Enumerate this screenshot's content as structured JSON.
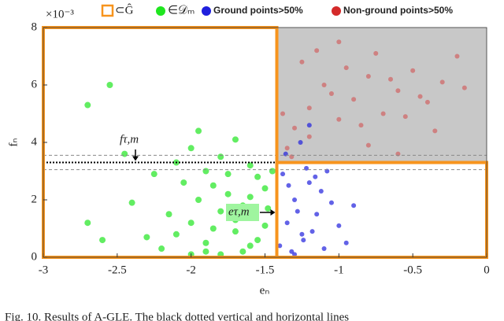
{
  "chart_data": {
    "type": "scatter",
    "multiplier": "×10⁻³",
    "xlabel": "eₙ",
    "ylabel": "fₙ",
    "xlim": [
      -3,
      0
    ],
    "xticks": [
      -3,
      -2.5,
      -2,
      -1.5,
      -1,
      -0.5,
      0
    ],
    "ylim": [
      0,
      8
    ],
    "yticks": [
      0,
      2,
      4,
      6,
      8
    ],
    "region_legend": {
      "name": "⊂Ĝ",
      "color": "#f7941d"
    },
    "region_color": "#c8c8c8",
    "thresholds": {
      "e_tau": -1.42,
      "f_tau": 3.3,
      "f_band": [
        3.05,
        3.55
      ]
    },
    "annotations": {
      "f_tau": "fτ,m",
      "e_tau": "eτ,m"
    },
    "series": [
      {
        "name": "∈𝒟ₘ",
        "color": "#1fe61f",
        "x": [
          -2.2,
          -2.1,
          -2.0,
          -1.9,
          -1.8,
          -1.7,
          -1.6,
          -1.5,
          -1.95,
          -1.85,
          -1.75,
          -1.65,
          -1.55,
          -2.05,
          -2.15,
          -2.3,
          -1.9,
          -1.8,
          -1.7,
          -1.6,
          -2.0,
          -1.75,
          -1.85,
          -1.65,
          -2.4,
          -2.6,
          -1.5,
          -1.95,
          -2.1,
          -1.7,
          -1.8,
          -1.9,
          -2.0,
          -1.6,
          -1.55,
          -2.25,
          -2.45,
          -2.7,
          -1.45,
          -1.48,
          -2.55,
          -2.7
        ],
        "values": [
          0.3,
          0.8,
          1.2,
          0.5,
          1.6,
          0.9,
          0.4,
          1.1,
          2.0,
          2.5,
          2.2,
          1.8,
          2.8,
          2.6,
          1.5,
          0.7,
          3.0,
          3.5,
          4.1,
          3.2,
          3.8,
          2.9,
          1.0,
          0.2,
          1.9,
          0.6,
          2.4,
          4.4,
          3.3,
          1.3,
          0.1,
          0.2,
          0.1,
          2.1,
          0.6,
          2.9,
          3.6,
          1.2,
          3.0,
          1.7,
          6.0,
          5.3
        ]
      },
      {
        "name": "Ground points>50%",
        "color": "#1f1fdd",
        "x": [
          -1.4,
          -1.35,
          -1.3,
          -1.25,
          -1.2,
          -1.15,
          -1.1,
          -1.05,
          -1.38,
          -1.32,
          -1.28,
          -1.22,
          -1.18,
          -1.12,
          -1.0,
          -0.95,
          -1.36,
          -1.26,
          -1.16,
          -1.3,
          -1.24,
          -1.34,
          -1.08,
          -0.9,
          -1.2
        ],
        "values": [
          0.4,
          1.2,
          2.0,
          0.8,
          2.6,
          1.5,
          0.3,
          1.9,
          2.9,
          0.2,
          1.6,
          3.1,
          0.9,
          2.3,
          1.1,
          0.5,
          3.6,
          4.0,
          2.8,
          0.1,
          0.6,
          2.5,
          3.0,
          1.8,
          4.6
        ]
      },
      {
        "name": "Non-ground points>50%",
        "color": "#d42a2a",
        "x": [
          -1.35,
          -1.3,
          -1.2,
          -1.1,
          -1.0,
          -0.9,
          -0.8,
          -0.7,
          -0.6,
          -0.5,
          -0.4,
          -0.3,
          -0.2,
          -1.25,
          -1.15,
          -1.05,
          -0.95,
          -0.85,
          -0.75,
          -0.65,
          -0.55,
          -0.45,
          -1.38,
          -1.32,
          -1.0,
          -0.8,
          -1.2,
          -0.6,
          -0.35,
          -0.15
        ],
        "values": [
          3.8,
          4.5,
          5.2,
          6.0,
          4.8,
          5.5,
          6.3,
          5.0,
          5.8,
          6.5,
          5.4,
          6.1,
          7.0,
          6.8,
          7.2,
          5.7,
          6.6,
          4.6,
          7.1,
          6.2,
          4.9,
          5.6,
          5.0,
          3.5,
          7.5,
          3.9,
          4.2,
          3.6,
          4.4,
          5.9
        ]
      }
    ],
    "caption": "Fig. 10. Results of A-GLE. The black dotted vertical and horizontal lines"
  }
}
